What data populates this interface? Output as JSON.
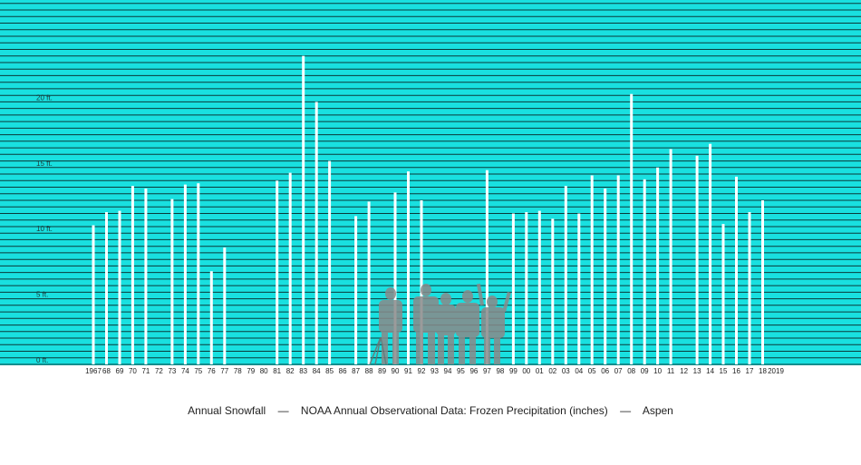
{
  "chart_data": {
    "type": "bar",
    "title": "",
    "xlabel": "",
    "ylabel": "",
    "units": "ft.",
    "ylim": [
      0,
      23.5
    ],
    "yticks": [
      {
        "value": 0,
        "label": "0 ft."
      },
      {
        "value": 5,
        "label": "5 ft."
      },
      {
        "value": 10,
        "label": "10 ft."
      },
      {
        "value": 15,
        "label": "15 ft."
      },
      {
        "value": 20,
        "label": "20 ft."
      }
    ],
    "background_color": "#19e0e0",
    "gridline_color": "#0b3a3a",
    "bar_color": "#ffffff",
    "categories": [
      "1967",
      "68",
      "69",
      "70",
      "71",
      "72",
      "73",
      "74",
      "75",
      "76",
      "77",
      "78",
      "79",
      "80",
      "81",
      "82",
      "83",
      "84",
      "85",
      "86",
      "87",
      "88",
      "89",
      "90",
      "91",
      "92",
      "93",
      "94",
      "95",
      "96",
      "97",
      "98",
      "99",
      "00",
      "01",
      "02",
      "03",
      "04",
      "05",
      "06",
      "07",
      "08",
      "09",
      "10",
      "11",
      "12",
      "13",
      "14",
      "15",
      "16",
      "17",
      "18",
      "2019"
    ],
    "values": [
      10.6,
      11.6,
      11.7,
      13.6,
      13.4,
      null,
      12.6,
      13.7,
      13.8,
      7.1,
      8.9,
      null,
      null,
      null,
      14.0,
      14.6,
      23.5,
      20.0,
      15.5,
      null,
      11.3,
      12.4,
      null,
      13.1,
      14.7,
      12.5,
      null,
      null,
      null,
      null,
      14.8,
      null,
      11.5,
      11.6,
      11.7,
      11.1,
      13.6,
      11.5,
      14.4,
      13.4,
      14.4,
      20.6,
      14.1,
      15.0,
      16.4,
      null,
      15.9,
      16.8,
      10.7,
      14.3,
      11.6,
      12.5,
      null
    ]
  },
  "caption": {
    "part1": "Annual Snowfall",
    "sep1": "—",
    "part2": "NOAA Annual Observational Data: Frozen Precipitation (inches)",
    "sep2": "—",
    "part3": "Aspen"
  },
  "figure_overlay": {
    "description_icon": "people-group-photo-icon"
  }
}
